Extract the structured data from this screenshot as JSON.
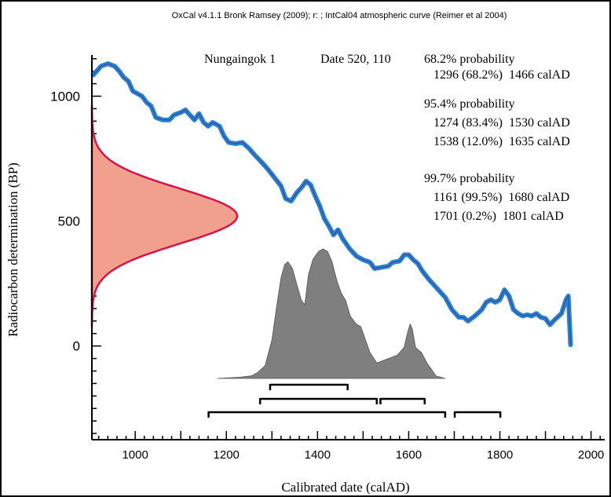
{
  "header": "OxCal v4.1.1 Bronk Ramsey (2009); r: ; IntCal04 atmospheric curve (Reimer et al 2004)",
  "chart_data": {
    "type": "line",
    "xlabel": "Calibrated date (calAD)",
    "ylabel": "Radiocarbon determination (BP)",
    "x_ticks": [
      "1000",
      "1200",
      "1400",
      "1600",
      "1800",
      "2000"
    ],
    "y_ticks": [
      "0",
      "500",
      "1000"
    ],
    "xlim": [
      905,
      2030
    ],
    "ylim": [
      -375,
      1165
    ],
    "sample": {
      "name": "Nungaingok 1",
      "date_label": "Date 520, 110",
      "mean_bp": 520,
      "sd_bp": 110
    },
    "calibration_curve": [
      [
        908,
        1085
      ],
      [
        925,
        1120
      ],
      [
        940,
        1130
      ],
      [
        955,
        1120
      ],
      [
        965,
        1100
      ],
      [
        975,
        1075
      ],
      [
        985,
        1060
      ],
      [
        995,
        1020
      ],
      [
        1005,
        1010
      ],
      [
        1015,
        1000
      ],
      [
        1025,
        975
      ],
      [
        1035,
        960
      ],
      [
        1045,
        915
      ],
      [
        1060,
        905
      ],
      [
        1075,
        905
      ],
      [
        1085,
        925
      ],
      [
        1100,
        935
      ],
      [
        1110,
        945
      ],
      [
        1120,
        925
      ],
      [
        1130,
        905
      ],
      [
        1140,
        930
      ],
      [
        1150,
        895
      ],
      [
        1160,
        880
      ],
      [
        1170,
        895
      ],
      [
        1185,
        880
      ],
      [
        1195,
        840
      ],
      [
        1205,
        815
      ],
      [
        1220,
        810
      ],
      [
        1235,
        815
      ],
      [
        1250,
        790
      ],
      [
        1262,
        765
      ],
      [
        1275,
        740
      ],
      [
        1290,
        710
      ],
      [
        1305,
        675
      ],
      [
        1320,
        640
      ],
      [
        1330,
        590
      ],
      [
        1342,
        580
      ],
      [
        1355,
        615
      ],
      [
        1365,
        635
      ],
      [
        1375,
        660
      ],
      [
        1385,
        645
      ],
      [
        1395,
        600
      ],
      [
        1405,
        560
      ],
      [
        1415,
        510
      ],
      [
        1425,
        480
      ],
      [
        1435,
        445
      ],
      [
        1445,
        465
      ],
      [
        1455,
        430
      ],
      [
        1470,
        390
      ],
      [
        1485,
        360
      ],
      [
        1500,
        345
      ],
      [
        1515,
        335
      ],
      [
        1525,
        310
      ],
      [
        1540,
        315
      ],
      [
        1555,
        320
      ],
      [
        1565,
        335
      ],
      [
        1580,
        340
      ],
      [
        1590,
        365
      ],
      [
        1600,
        365
      ],
      [
        1610,
        345
      ],
      [
        1620,
        330
      ],
      [
        1630,
        300
      ],
      [
        1645,
        265
      ],
      [
        1660,
        235
      ],
      [
        1670,
        215
      ],
      [
        1680,
        195
      ],
      [
        1695,
        145
      ],
      [
        1710,
        115
      ],
      [
        1720,
        115
      ],
      [
        1730,
        100
      ],
      [
        1745,
        120
      ],
      [
        1760,
        145
      ],
      [
        1770,
        175
      ],
      [
        1780,
        185
      ],
      [
        1790,
        175
      ],
      [
        1800,
        185
      ],
      [
        1810,
        225
      ],
      [
        1820,
        200
      ],
      [
        1830,
        145
      ],
      [
        1840,
        130
      ],
      [
        1850,
        120
      ],
      [
        1860,
        125
      ],
      [
        1870,
        120
      ],
      [
        1880,
        130
      ],
      [
        1890,
        115
      ],
      [
        1900,
        110
      ],
      [
        1910,
        85
      ],
      [
        1920,
        105
      ],
      [
        1935,
        130
      ],
      [
        1945,
        185
      ],
      [
        1950,
        200
      ],
      [
        1955,
        5
      ]
    ],
    "posterior_distribution": [
      [
        1180,
        0
      ],
      [
        1230,
        0.01
      ],
      [
        1255,
        0.02
      ],
      [
        1270,
        0.05
      ],
      [
        1285,
        0.1
      ],
      [
        1300,
        0.3
      ],
      [
        1310,
        0.55
      ],
      [
        1320,
        0.78
      ],
      [
        1328,
        0.88
      ],
      [
        1335,
        0.9
      ],
      [
        1345,
        0.85
      ],
      [
        1355,
        0.72
      ],
      [
        1365,
        0.6
      ],
      [
        1372,
        0.57
      ],
      [
        1380,
        0.8
      ],
      [
        1390,
        0.92
      ],
      [
        1402,
        0.98
      ],
      [
        1412,
        1.0
      ],
      [
        1422,
        0.98
      ],
      [
        1432,
        0.9
      ],
      [
        1442,
        0.76
      ],
      [
        1452,
        0.66
      ],
      [
        1462,
        0.6
      ],
      [
        1472,
        0.48
      ],
      [
        1485,
        0.42
      ],
      [
        1495,
        0.4
      ],
      [
        1505,
        0.3
      ],
      [
        1515,
        0.2
      ],
      [
        1530,
        0.12
      ],
      [
        1545,
        0.14
      ],
      [
        1560,
        0.16
      ],
      [
        1575,
        0.18
      ],
      [
        1590,
        0.24
      ],
      [
        1598,
        0.36
      ],
      [
        1603,
        0.42
      ],
      [
        1608,
        0.38
      ],
      [
        1615,
        0.24
      ],
      [
        1628,
        0.2
      ],
      [
        1640,
        0.12
      ],
      [
        1660,
        0.02
      ],
      [
        1680,
        0
      ]
    ],
    "ranges": [
      {
        "label": "68.2% probability",
        "rows": [
          "1296 (68.2%)  1466 calAD"
        ]
      },
      {
        "label": "95.4% probability",
        "rows": [
          "1274 (83.4%)  1530 calAD",
          "1538 (12.0%)  1635 calAD"
        ]
      },
      {
        "label": "99.7% probability",
        "rows": [
          "1161 (99.5%)  1680 calAD",
          "1701 (0.2%)  1801 calAD"
        ]
      }
    ],
    "range_bars": [
      {
        "level": 1,
        "from": 1296,
        "to": 1466
      },
      {
        "level": 2,
        "from": 1274,
        "to": 1530
      },
      {
        "level": 2,
        "from": 1538,
        "to": 1635
      },
      {
        "level": 3,
        "from": 1161,
        "to": 1680
      },
      {
        "level": 3,
        "from": 1701,
        "to": 1801
      }
    ],
    "colors": {
      "curve": "#1f87d8",
      "curve_core": "#5a3c8c",
      "radiocarbon_fill": "#f0a08c",
      "radiocarbon_edge": "#d8144c",
      "posterior": "#7f7f7f"
    }
  }
}
